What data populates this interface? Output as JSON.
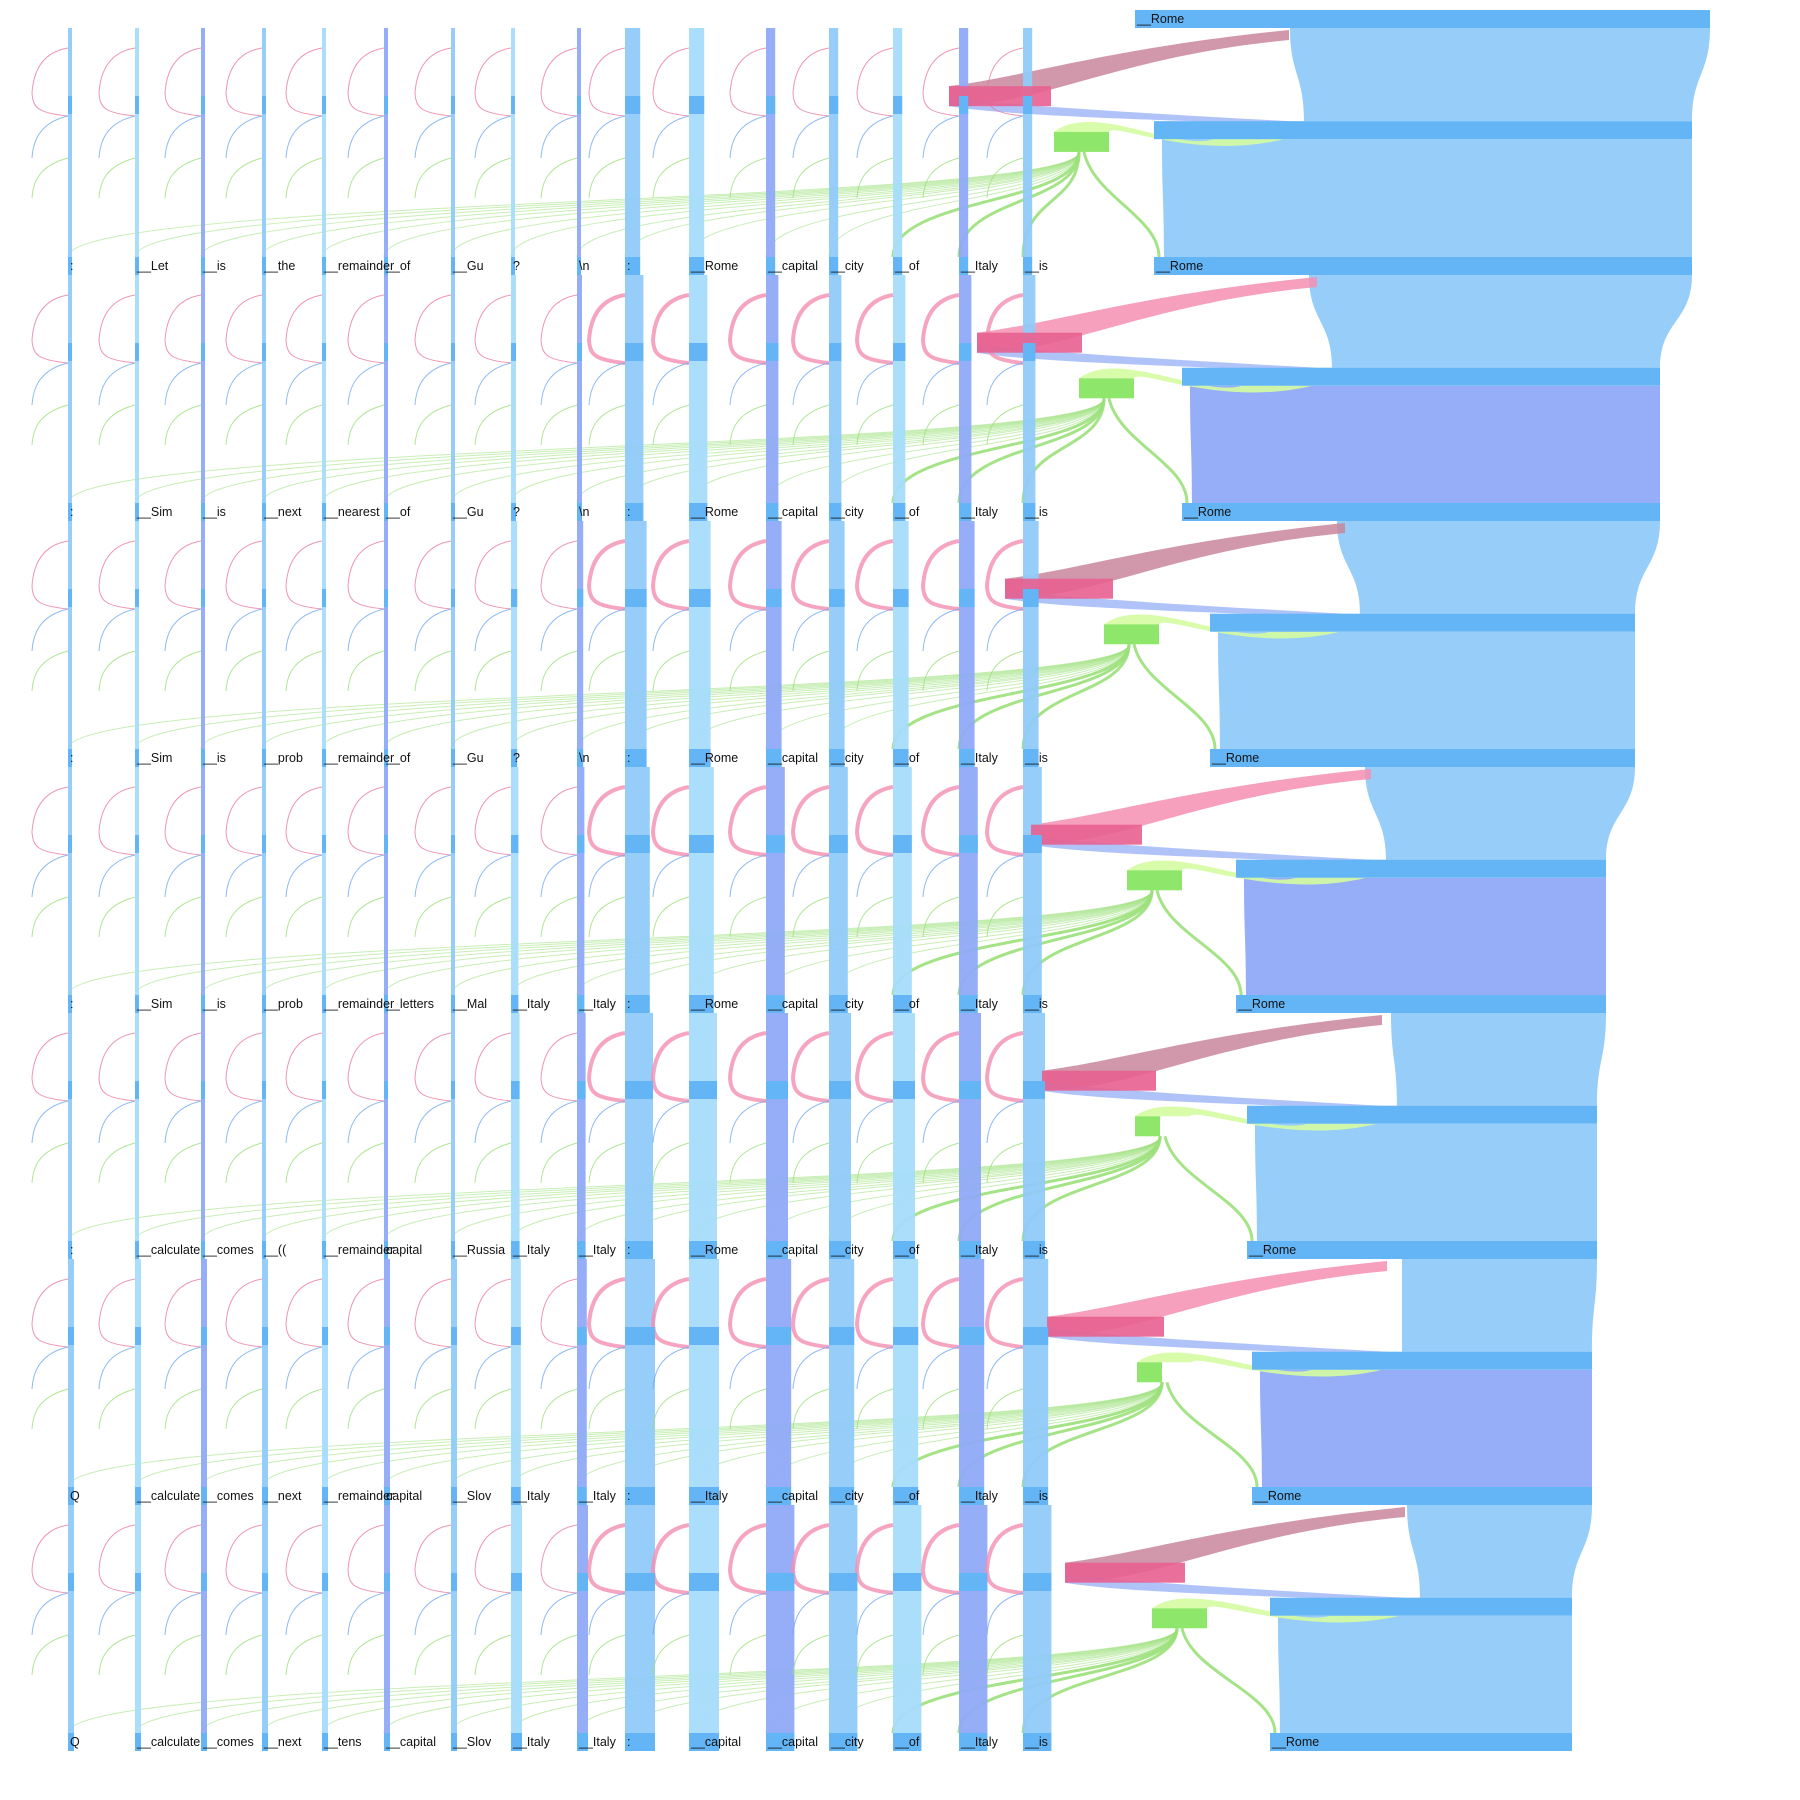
{
  "layers": [
    {
      "tokens": [
        "Q",
        "__calculate",
        "__comes",
        "__next",
        "__tens",
        "__capital",
        "__Slov",
        "__Italy",
        "__Italy",
        ":",
        "__capital",
        "__capital",
        "__city",
        "__of",
        "__Italy",
        "__is"
      ],
      "output": "__Rome"
    },
    {
      "tokens": [
        "Q",
        "__calculate",
        "__comes",
        "__next",
        "__remainder",
        "capital",
        "__Slov",
        "__Italy",
        "__Italy",
        ":",
        "__Italy",
        "__capital",
        "__city",
        "__of",
        "__Italy",
        "__is"
      ],
      "output": "__Rome"
    },
    {
      "tokens": [
        ":",
        "__calculate",
        "__comes",
        "__((",
        "__remainder",
        "capital",
        "__Russia",
        "__Italy",
        "__Italy",
        ":",
        "__Rome",
        "__capital",
        "__city",
        "__of",
        "__Italy",
        "__is"
      ],
      "output": "__Rome"
    },
    {
      "tokens": [
        ":",
        "__Sim",
        "__is",
        "__prob",
        "__remainder",
        "__letters",
        "__Mal",
        "__Italy",
        "__Italy",
        ":",
        "__Rome",
        "__capital",
        "__city",
        "__of",
        "__Italy",
        "__is"
      ],
      "output": "__Rome"
    },
    {
      "tokens": [
        ":",
        "__Sim",
        "__is",
        "__prob",
        "__remainder",
        "__of",
        "__Gu",
        "?",
        "\\n",
        ":",
        "__Rome",
        "__capital",
        "__city",
        "__of",
        "__Italy",
        "__is"
      ],
      "output": "__Rome"
    },
    {
      "tokens": [
        ":",
        "__Sim",
        "__is",
        "__next",
        "__nearest",
        "__of",
        "__Gu",
        "?",
        "\\n",
        ":",
        "__Rome",
        "__capital",
        "__city",
        "__of",
        "__Italy",
        "__is"
      ],
      "output": "__Rome"
    },
    {
      "tokens": [
        ":",
        "__Let",
        "__is",
        "__the",
        "__remainder",
        "__of",
        "__Gu",
        "?",
        "\\n",
        ":",
        "__Rome",
        "__capital",
        "__city",
        "__of",
        "__Italy",
        "__is"
      ],
      "output": "__Rome"
    },
    {
      "tokens": [],
      "output": "__Rome"
    }
  ],
  "colors": {
    "token_box": "#64b5f6",
    "residual_blue": "#90caf9",
    "residual_light": "#a5dcfb",
    "residual_violet": "#8faaf7",
    "attention_pink": "#f48fb1",
    "attention_dark": "#e86090",
    "attention_grey": "#c9869c",
    "mlp_green": "#8ee66a",
    "mlp_light": "#d4fca0",
    "mlp_line": "#9be07a"
  }
}
